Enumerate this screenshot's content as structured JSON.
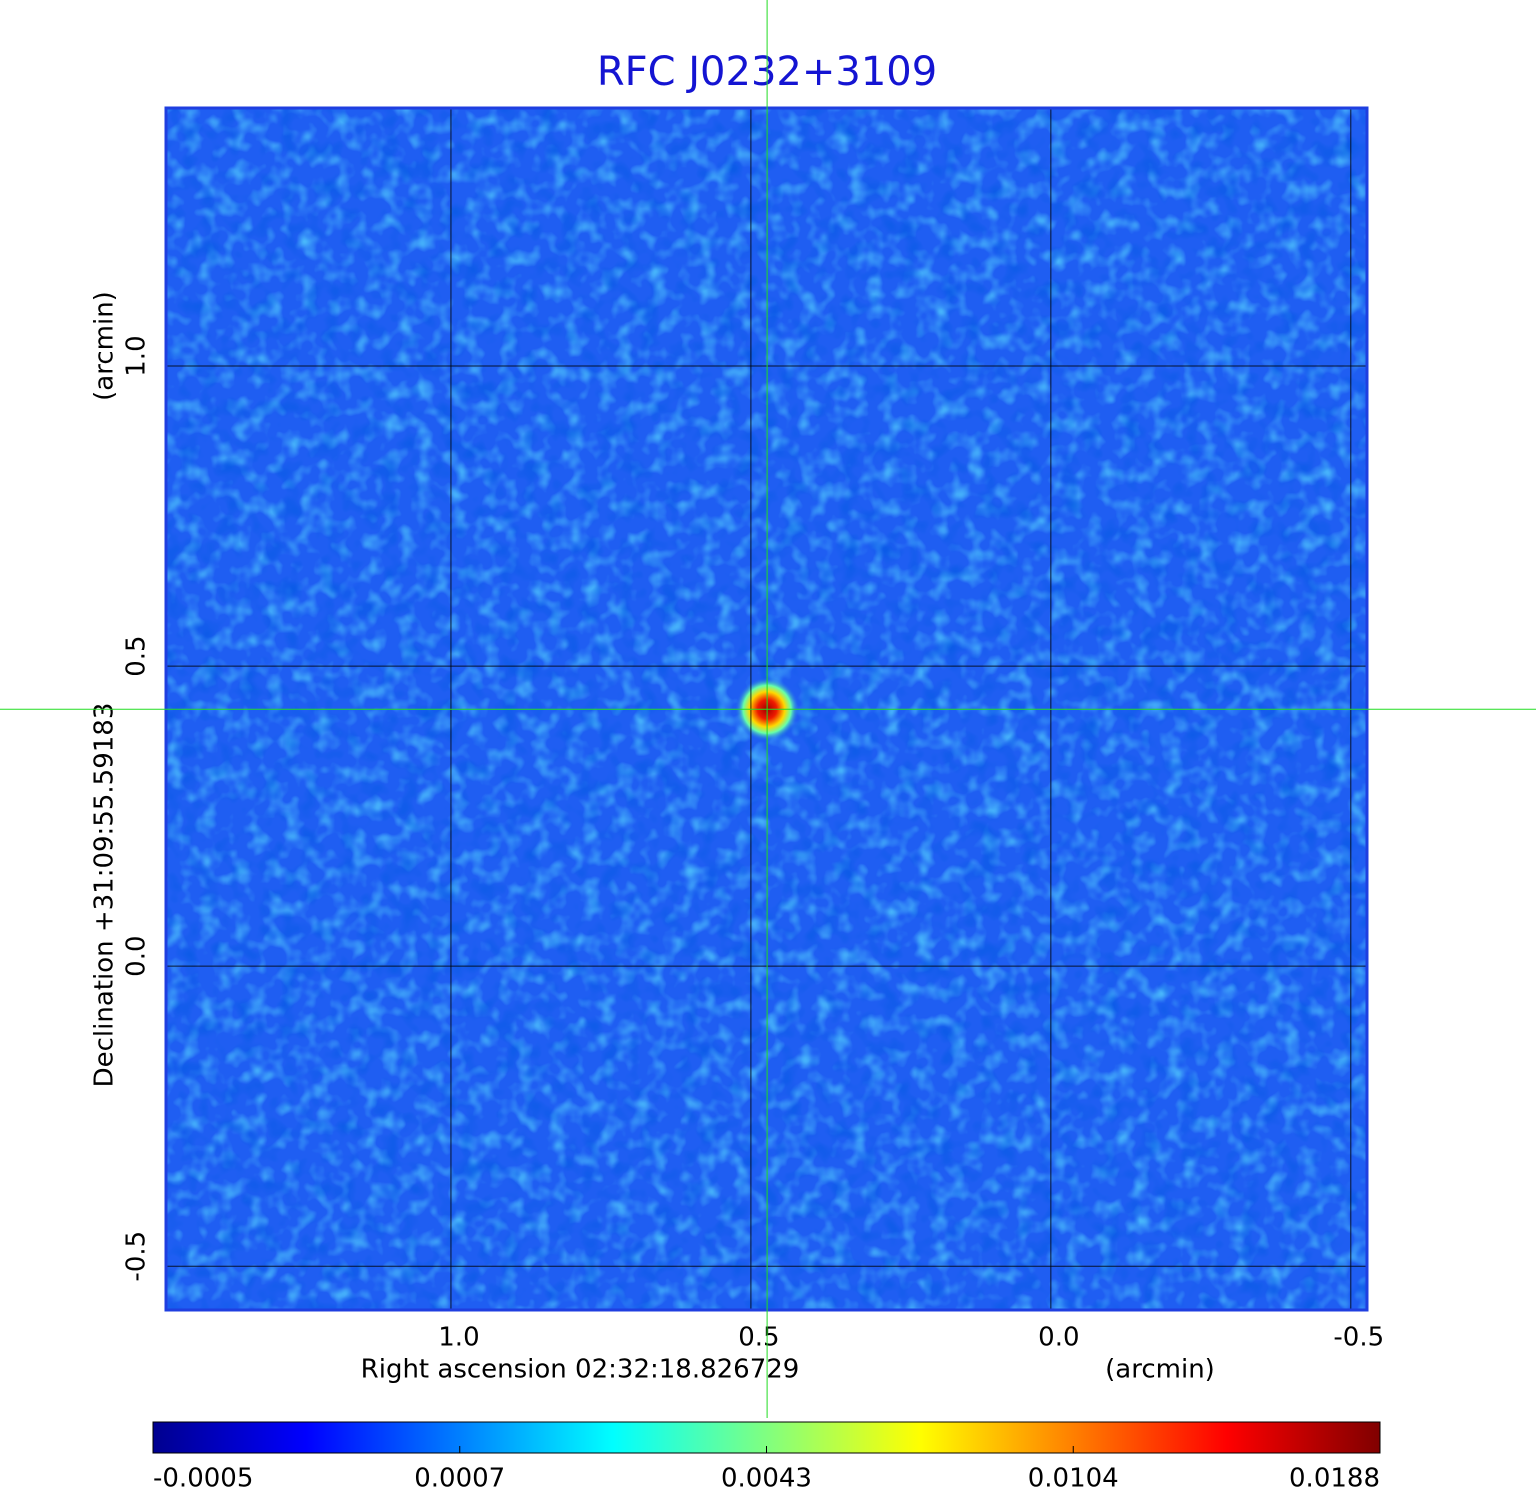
{
  "chart_data": {
    "type": "image",
    "title": "RFC J0232+3109",
    "x_label": "Right ascension  02:32:18.826729",
    "x_unit": "(arcmin)",
    "y_label": "Declination  +31:09:55.59183",
    "y_unit": "(arcmin)",
    "xlim": [
      1.475,
      -0.527
    ],
    "ylim": [
      -0.573,
      1.43
    ],
    "xticks": [
      {
        "value": 1,
        "label": "1.0"
      },
      0.5,
      {
        "value": 0,
        "label": "0.0"
      },
      -0.5
    ],
    "yticks": [
      -0.5,
      {
        "value": 0,
        "label": "0.0"
      },
      0.5,
      {
        "value": 1,
        "label": "1.0"
      }
    ],
    "grid": true,
    "background_color": "#1f5ef2",
    "source": {
      "x": 0.473,
      "y": 0.428,
      "peak": 0.0188
    },
    "crosshair": {
      "x": 0.473,
      "y": 0.428,
      "color": "#22dd22"
    },
    "colorbar": {
      "colormap": "jet",
      "ticks": [
        -0.0005,
        0.0007,
        0.0043,
        0.0104,
        0.0188
      ]
    }
  }
}
